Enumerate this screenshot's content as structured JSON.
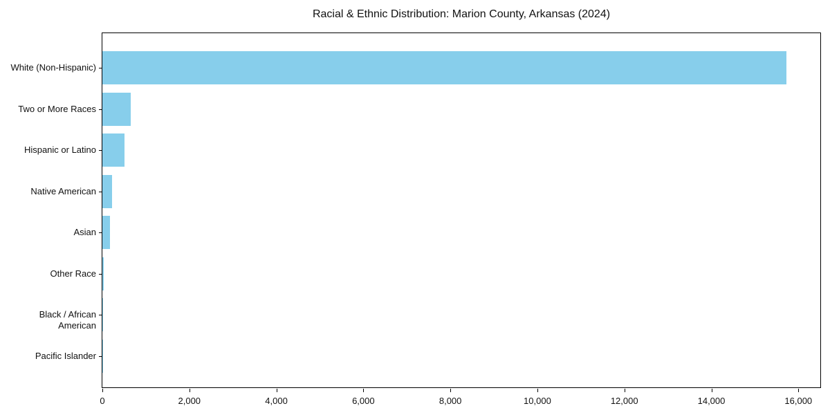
{
  "chart_data": {
    "type": "bar",
    "orientation": "horizontal",
    "title": "Racial & Ethnic Distribution: Marion County, Arkansas (2024)",
    "categories": [
      "White (Non-Hispanic)",
      "Two or More Races",
      "Hispanic or Latino",
      "Native American",
      "Asian",
      "Other Race",
      "Black / African American",
      "Pacific Islander"
    ],
    "values": [
      15720,
      650,
      510,
      225,
      180,
      25,
      10,
      5
    ],
    "xlabel": "",
    "ylabel": "",
    "xlim": [
      0,
      16520
    ],
    "xtick_values": [
      0,
      2000,
      4000,
      6000,
      8000,
      10000,
      12000,
      14000,
      16000
    ],
    "xtick_labels": [
      "0",
      "2,000",
      "4,000",
      "6,000",
      "8,000",
      "10,000",
      "12,000",
      "14,000",
      "16,000"
    ],
    "bar_color": "#87CEEB",
    "grid": false,
    "legend": "none",
    "plot_background": "#ffffff"
  }
}
